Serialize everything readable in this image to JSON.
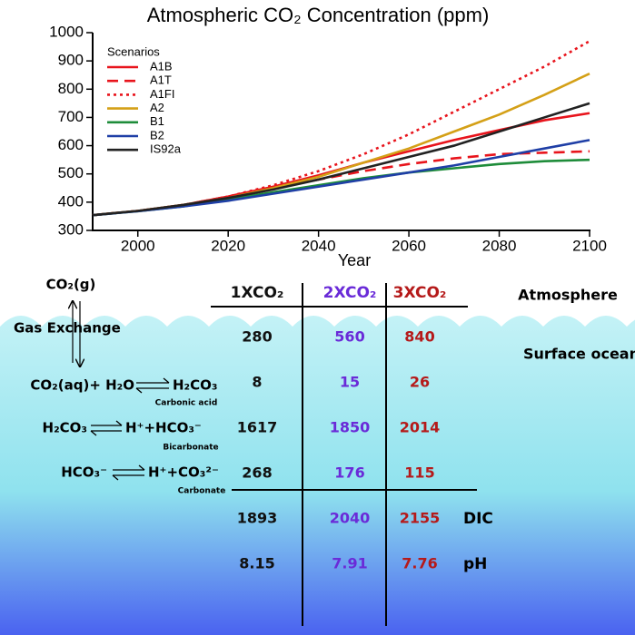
{
  "chart_data": {
    "type": "line",
    "title": "Atmospheric CO₂ Concentration (ppm)",
    "x_label": "Year",
    "x": [
      1990,
      2000,
      2010,
      2020,
      2030,
      2040,
      2050,
      2060,
      2070,
      2080,
      2090,
      2100
    ],
    "xlim": [
      1990,
      2100
    ],
    "xticks": [
      2000,
      2020,
      2040,
      2060,
      2080,
      2100
    ],
    "ylim": [
      300,
      1000
    ],
    "yticks": [
      300,
      400,
      500,
      600,
      700,
      800,
      900,
      1000
    ],
    "legend_title": "Scenarios",
    "legend": "upper left",
    "series": [
      {
        "name": "A1B",
        "color": "#e8141c",
        "linestyle": "solid",
        "values": [
          354,
          369,
          390,
          420,
          455,
          495,
          540,
          580,
          620,
          655,
          690,
          715
        ]
      },
      {
        "name": "A1T",
        "color": "#e8141c",
        "linestyle": "dashed",
        "values": [
          354,
          369,
          390,
          420,
          450,
          480,
          510,
          535,
          555,
          570,
          575,
          580
        ]
      },
      {
        "name": "A1FI",
        "color": "#e8141c",
        "linestyle": "dotted",
        "values": [
          354,
          369,
          390,
          420,
          460,
          510,
          570,
          640,
          720,
          800,
          880,
          970
        ]
      },
      {
        "name": "A2",
        "color": "#d4a017",
        "linestyle": "solid",
        "values": [
          354,
          369,
          390,
          415,
          450,
          490,
          540,
          590,
          650,
          710,
          780,
          855
        ]
      },
      {
        "name": "B1",
        "color": "#1e8c3a",
        "linestyle": "solid",
        "values": [
          354,
          368,
          385,
          410,
          435,
          460,
          485,
          505,
          520,
          535,
          545,
          550
        ]
      },
      {
        "name": "B2",
        "color": "#1f3fa6",
        "linestyle": "solid",
        "values": [
          354,
          368,
          385,
          405,
          430,
          455,
          480,
          505,
          530,
          560,
          590,
          620
        ]
      },
      {
        "name": "IS92a",
        "color": "#222222",
        "linestyle": "solid",
        "values": [
          354,
          369,
          390,
          415,
          445,
          480,
          520,
          560,
          600,
          650,
          700,
          750
        ]
      }
    ]
  },
  "diagram": {
    "gas": "CO₂(g)",
    "gas_exchange": "Gas Exchange",
    "atmosphere": "Atmosphere",
    "surface_ocean": "Surface ocean",
    "reactions": [
      {
        "left": "CO₂(aq)+ H₂O",
        "right": "H₂CO₃",
        "label": "Carbonic  acid"
      },
      {
        "left": "H₂CO₃",
        "right": "H⁺+HCO₃⁻",
        "label": "Bicarbonate"
      },
      {
        "left": "HCO₃⁻",
        "right": "H⁺+CO₃²⁻",
        "label": "Carbonate"
      }
    ]
  },
  "table": {
    "columns": [
      {
        "name": "1XCO₂",
        "color": "#111111"
      },
      {
        "name": "2XCO₂",
        "color": "#6a2bd8"
      },
      {
        "name": "3XCO₂",
        "color": "#b51a1a"
      }
    ],
    "rows": [
      {
        "values": [
          280,
          560,
          840
        ]
      },
      {
        "values": [
          8,
          15,
          26
        ]
      },
      {
        "values": [
          1617,
          1850,
          2014
        ]
      },
      {
        "values": [
          268,
          176,
          115
        ]
      },
      {
        "values": [
          1893,
          2040,
          2155
        ],
        "label": "DIC"
      },
      {
        "values": [
          8.15,
          7.91,
          7.76
        ],
        "label": "pH"
      }
    ]
  }
}
